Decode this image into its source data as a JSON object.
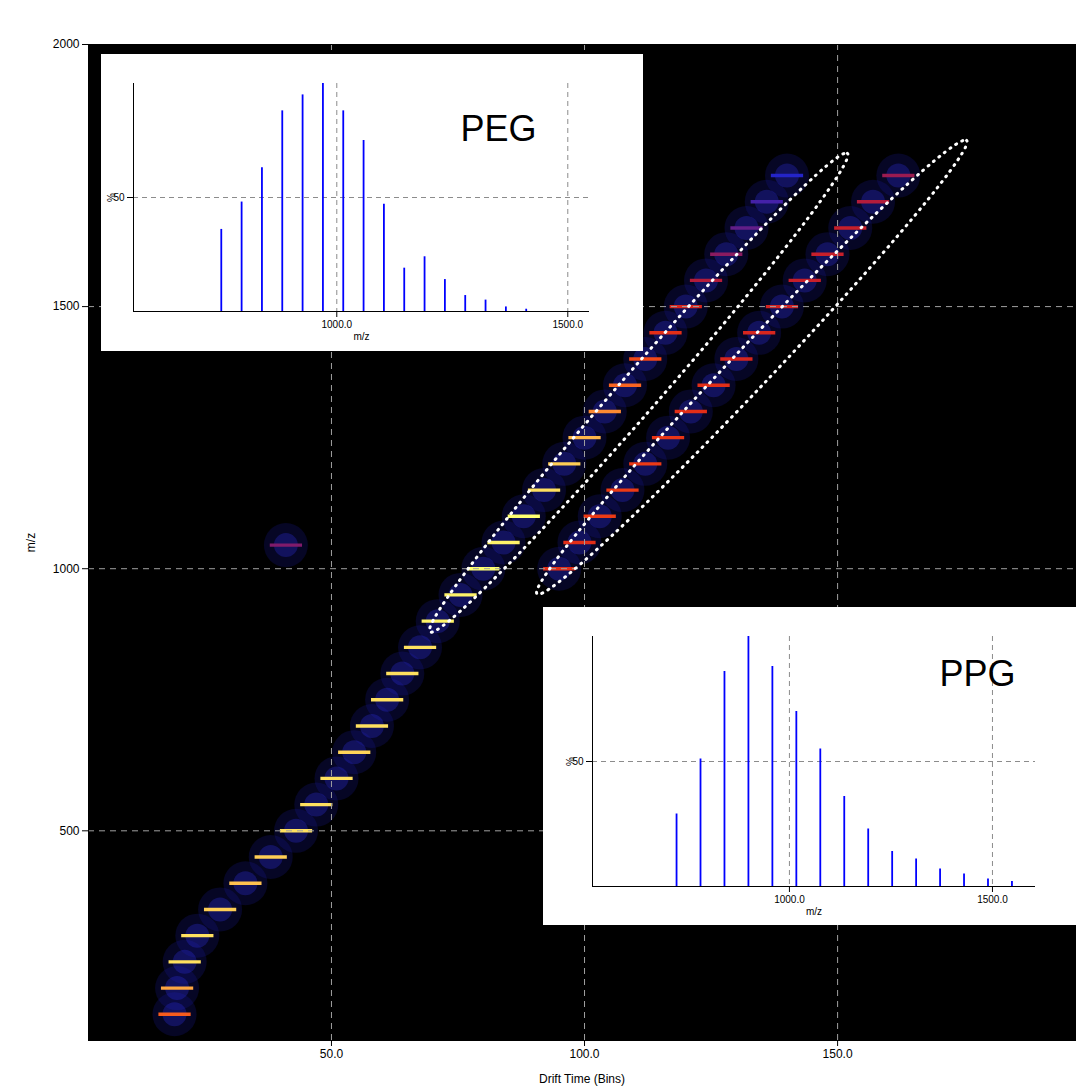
{
  "chart_data": [
    {
      "type": "heatmap",
      "xlabel": "Drift Time (Bins)",
      "ylabel": "m/z",
      "xlim": [
        2,
        197
      ],
      "ylim": [
        100,
        2000
      ],
      "xticks": [
        {
          "value": 50,
          "label": "50.0"
        },
        {
          "value": 100,
          "label": "100.0"
        },
        {
          "value": 150,
          "label": "150.0"
        }
      ],
      "yticks": [
        500,
        1000,
        1500,
        2000
      ],
      "grid": true,
      "cells": [
        [
          19,
          150,
          70
        ],
        [
          19.5,
          200,
          85
        ],
        [
          21,
          250,
          95
        ],
        [
          23.5,
          300,
          95
        ],
        [
          28,
          350,
          92
        ],
        [
          33,
          400,
          90
        ],
        [
          38,
          450,
          92
        ],
        [
          43,
          500,
          95
        ],
        [
          47,
          550,
          95
        ],
        [
          51,
          600,
          95
        ],
        [
          54.5,
          650,
          93
        ],
        [
          58,
          700,
          95
        ],
        [
          61,
          750,
          95
        ],
        [
          64,
          800,
          95
        ],
        [
          67.5,
          850,
          95
        ],
        [
          71,
          900,
          98
        ],
        [
          75.5,
          950,
          98
        ],
        [
          80,
          1000,
          100
        ],
        [
          84,
          1050,
          98
        ],
        [
          88,
          1100,
          100
        ],
        [
          92,
          1150,
          95
        ],
        [
          96,
          1200,
          92
        ],
        [
          100,
          1250,
          88
        ],
        [
          104,
          1300,
          80
        ],
        [
          108,
          1350,
          72
        ],
        [
          112,
          1400,
          65
        ],
        [
          116,
          1450,
          55
        ],
        [
          120,
          1500,
          50
        ],
        [
          124,
          1550,
          40
        ],
        [
          128,
          1600,
          32
        ],
        [
          132,
          1650,
          25
        ],
        [
          136,
          1700,
          20
        ],
        [
          140,
          1750,
          15
        ],
        [
          95,
          1000,
          55
        ],
        [
          99,
          1050,
          55
        ],
        [
          103,
          1100,
          60
        ],
        [
          107.5,
          1150,
          60
        ],
        [
          112,
          1200,
          60
        ],
        [
          116.5,
          1250,
          58
        ],
        [
          121,
          1300,
          55
        ],
        [
          125.5,
          1350,
          55
        ],
        [
          130,
          1400,
          50
        ],
        [
          134.5,
          1450,
          50
        ],
        [
          139,
          1500,
          48
        ],
        [
          143.5,
          1550,
          45
        ],
        [
          148,
          1600,
          45
        ],
        [
          152.5,
          1650,
          45
        ],
        [
          157,
          1700,
          40
        ],
        [
          162,
          1750,
          35
        ],
        [
          41,
          1045,
          30
        ]
      ],
      "regions": [
        {
          "type": "ellipse",
          "line_style": "dotted",
          "color": "#ffffff",
          "from": [
            70.6,
            890
          ],
          "to": [
            151,
            1780
          ]
        },
        {
          "type": "ellipse",
          "line_style": "dotted",
          "color": "#ffffff",
          "from": [
            91.8,
            962
          ],
          "to": [
            174.5,
            1805
          ]
        }
      ]
    },
    {
      "type": "stem",
      "title": "PEG",
      "xlabel": "m/z",
      "ylabel": "%",
      "color": "#0000ff",
      "x": [
        750,
        794,
        838,
        882,
        926,
        970,
        1014,
        1058,
        1102,
        1146,
        1190,
        1234,
        1278,
        1322,
        1366,
        1410
      ],
      "values": [
        36,
        48,
        63,
        88,
        95,
        100,
        88,
        75,
        47,
        19,
        24,
        14,
        7,
        5,
        2,
        1
      ],
      "xlim": [
        560,
        1547
      ],
      "xticks": [
        {
          "value": 1000,
          "label": "1000.0"
        },
        {
          "value": 1500,
          "label": "1500.0"
        }
      ],
      "ylim": [
        0,
        100
      ],
      "yticks": [
        50
      ],
      "grid": true
    },
    {
      "type": "stem",
      "title": "PPG",
      "xlabel": "m/z",
      "ylabel": "%",
      "color": "#0000ff",
      "x": [
        722,
        781,
        840,
        899,
        958,
        1017,
        1076,
        1135,
        1194,
        1253,
        1312,
        1371,
        1430,
        1489,
        1548
      ],
      "values": [
        29,
        51,
        86,
        100,
        88,
        70,
        55,
        36,
        23,
        14,
        11,
        7,
        5,
        3,
        2
      ],
      "xlim": [
        515,
        1606
      ],
      "xticks": [
        {
          "value": 1000,
          "label": "1000.0"
        },
        {
          "value": 1500,
          "label": "1500.0"
        }
      ],
      "ylim": [
        0,
        100
      ],
      "yticks": [
        50
      ],
      "grid": true
    }
  ]
}
